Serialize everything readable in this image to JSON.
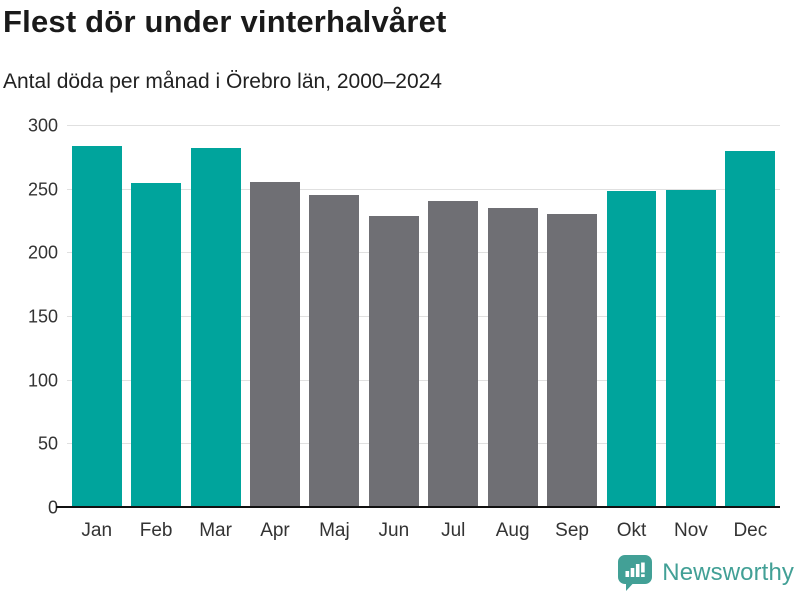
{
  "header": {
    "title": "Flest dör under vinterhalvåret",
    "subtitle": "Antal döda per månad i Örebro län, 2000–2024"
  },
  "chart_data": {
    "type": "bar",
    "title": "Flest dör under vinterhalvåret",
    "subtitle": "Antal döda per månad i Örebro län, 2000–2024",
    "categories": [
      "Jan",
      "Feb",
      "Mar",
      "Apr",
      "Maj",
      "Jun",
      "Jul",
      "Aug",
      "Sep",
      "Okt",
      "Nov",
      "Dec"
    ],
    "values": [
      284,
      255,
      283,
      256,
      246,
      229,
      241,
      236,
      231,
      249,
      250,
      280
    ],
    "bar_color_keys": [
      "teal",
      "teal",
      "teal",
      "gray",
      "gray",
      "gray",
      "gray",
      "gray",
      "gray",
      "teal",
      "teal",
      "teal"
    ],
    "colors": {
      "teal": "#00a49c",
      "gray": "#6f6f74"
    },
    "xlabel": "",
    "ylabel": "",
    "ylim": [
      0,
      300
    ],
    "yticks": [
      0,
      50,
      100,
      150,
      200,
      250,
      300
    ],
    "grid": true,
    "legend": false,
    "gridline_color": "#e0e0e0",
    "axis_line_color": "#111111"
  },
  "footer": {
    "brand": "Newsworthy",
    "brand_color": "#42a096"
  }
}
